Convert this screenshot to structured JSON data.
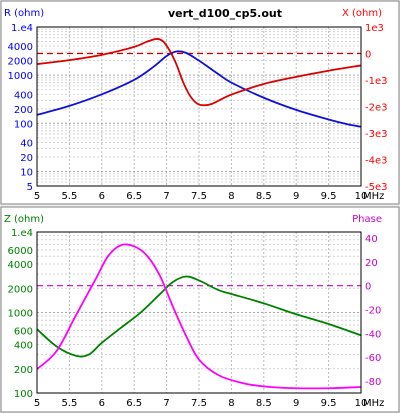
{
  "chart_data": [
    {
      "type": "line",
      "title": "vert_d100_cp5.out",
      "xlabel": "MHz",
      "xlim": [
        5,
        10
      ],
      "x_ticks": [
        "5",
        "5.5",
        "6",
        "6.5",
        "7",
        "7.5",
        "8",
        "8.5",
        "9",
        "9.5",
        "10"
      ],
      "left_axis": {
        "label": "R (ohm)",
        "scale": "log",
        "ylim": [
          5,
          10000
        ],
        "ticks": [
          "1.e4",
          "4000",
          "2000",
          "1000",
          "400",
          "200",
          "100",
          "40",
          "20",
          "10",
          "5"
        ],
        "color": "#0000ff"
      },
      "right_axis": {
        "label": "X (ohm)",
        "ylim": [
          -5000,
          1000
        ],
        "ticks": [
          "1e3",
          "0",
          "-1e3",
          "-2e3",
          "-3e3",
          "-4e3",
          "-5e3"
        ],
        "color": "#ff0000"
      },
      "reference_line": {
        "axis": "right",
        "value": 0,
        "style": "dashed",
        "color": "#cc0000"
      },
      "series": [
        {
          "axis": "left",
          "color": "#1010dd",
          "x": [
            5.0,
            5.5,
            6.0,
            6.5,
            6.8,
            7.0,
            7.15,
            7.3,
            7.5,
            7.8,
            8.0,
            8.5,
            9.0,
            9.5,
            9.8,
            10.0
          ],
          "values": [
            150,
            230,
            400,
            800,
            1500,
            2500,
            3100,
            2900,
            2000,
            1050,
            700,
            340,
            190,
            120,
            95,
            85
          ]
        },
        {
          "axis": "right",
          "color": "#dd0000",
          "x": [
            5.0,
            5.5,
            6.0,
            6.5,
            6.7,
            6.85,
            6.95,
            7.05,
            7.15,
            7.25,
            7.35,
            7.45,
            7.55,
            7.7,
            8.0,
            8.5,
            9.0,
            9.5,
            10.0
          ],
          "values": [
            -400,
            -250,
            -50,
            250,
            450,
            550,
            450,
            100,
            -400,
            -1050,
            -1550,
            -1850,
            -1950,
            -1900,
            -1550,
            -1150,
            -880,
            -650,
            -450
          ]
        }
      ]
    },
    {
      "type": "line",
      "xlabel": "MHz",
      "xlim": [
        5,
        10
      ],
      "x_ticks": [
        "5",
        "5.5",
        "6",
        "6.5",
        "7",
        "7.5",
        "8",
        "8.5",
        "9",
        "9.5",
        "10"
      ],
      "left_axis": {
        "label": "Z (ohm)",
        "scale": "log",
        "ylim": [
          100,
          10000
        ],
        "ticks": [
          "1.e4",
          "6000",
          "4000",
          "2000",
          "1000",
          "600",
          "400",
          "200",
          "100"
        ],
        "color": "#008000"
      },
      "right_axis": {
        "label": "Phase",
        "ylim": [
          -90,
          45
        ],
        "ticks": [
          "40",
          "20",
          "0",
          "-20",
          "-40",
          "-60",
          "-80"
        ],
        "color": "#cc00cc"
      },
      "reference_line": {
        "axis": "right",
        "value": 0,
        "style": "dashed",
        "color": "#cc00cc"
      },
      "series": [
        {
          "axis": "left",
          "color": "#008000",
          "x": [
            5.0,
            5.3,
            5.6,
            5.8,
            6.0,
            6.3,
            6.6,
            6.9,
            7.1,
            7.3,
            7.5,
            7.8,
            8.0,
            8.5,
            9.0,
            9.5,
            10.0
          ],
          "values": [
            620,
            380,
            290,
            300,
            420,
            650,
            1000,
            1700,
            2400,
            2800,
            2500,
            1900,
            1700,
            1300,
            950,
            720,
            520
          ]
        },
        {
          "axis": "right",
          "color": "#ff00ff",
          "x": [
            5.0,
            5.3,
            5.6,
            5.9,
            6.1,
            6.3,
            6.5,
            6.7,
            6.9,
            7.1,
            7.3,
            7.5,
            7.8,
            8.2,
            8.6,
            9.0,
            9.5,
            10.0
          ],
          "values": [
            -70,
            -55,
            -25,
            5,
            25,
            34,
            33,
            25,
            8,
            -18,
            -42,
            -62,
            -75,
            -82,
            -85,
            -86,
            -86,
            -85
          ]
        }
      ]
    }
  ]
}
